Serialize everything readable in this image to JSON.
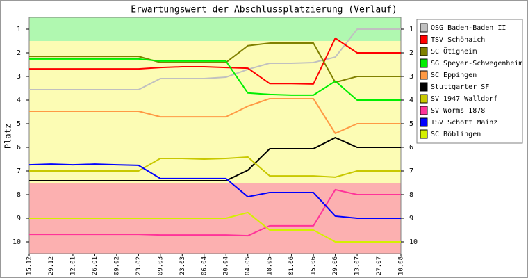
{
  "chart_data": {
    "type": "line",
    "title": "Erwartungswert der Abschlussplatzierung (Verlauf)",
    "y_label": "Platz",
    "categories": [
      "15.12",
      "29.12",
      "12.01",
      "26.01",
      "09.02",
      "23.02",
      "09.03",
      "23.03",
      "06.04",
      "20.04",
      "04.05",
      "18.05",
      "01.06",
      "15.06",
      "29.06",
      "13.07",
      "27.07",
      "10.08"
    ],
    "ylim": [
      0.5,
      10.5
    ],
    "y_inverted": true,
    "yticks": [
      1,
      2,
      3,
      4,
      5,
      6,
      7,
      8,
      9,
      10
    ],
    "right_axis": true,
    "legend": "right",
    "bands": [
      {
        "from": 0.5,
        "to": 1.5,
        "color": "#b0f8b0"
      },
      {
        "from": 1.5,
        "to": 7.5,
        "color": "#fcfcb4"
      },
      {
        "from": 7.5,
        "to": 10.5,
        "color": "#fcb0b0"
      }
    ],
    "series": [
      {
        "name": "OSG Baden-Baden II",
        "color": "#c0c0c0",
        "values": [
          3.56,
          3.56,
          3.56,
          3.56,
          3.56,
          3.56,
          3.09,
          3.09,
          3.09,
          3.03,
          2.7,
          2.44,
          2.44,
          2.41,
          2.18,
          1,
          1,
          1
        ]
      },
      {
        "name": "TSV Schönaich",
        "color": "#ff0000",
        "values": [
          2.68,
          2.68,
          2.68,
          2.68,
          2.68,
          2.68,
          2.62,
          2.59,
          2.59,
          2.62,
          2.65,
          3.3,
          3.3,
          3.32,
          1.38,
          2,
          2,
          2
        ]
      },
      {
        "name": "SC Ötigheim",
        "color": "#808000",
        "values": [
          2.15,
          2.15,
          2.15,
          2.15,
          2.15,
          2.15,
          2.41,
          2.41,
          2.41,
          2.41,
          1.7,
          1.59,
          1.59,
          1.59,
          3.25,
          3,
          3,
          3
        ]
      },
      {
        "name": "SG Speyer-Schwegenheim",
        "color": "#00ee00",
        "values": [
          2.26,
          2.26,
          2.26,
          2.26,
          2.26,
          2.26,
          2.35,
          2.35,
          2.35,
          2.35,
          3.7,
          3.76,
          3.79,
          3.79,
          3.2,
          4,
          4,
          4
        ]
      },
      {
        "name": "SC Eppingen",
        "color": "#ff9944",
        "values": [
          4.47,
          4.47,
          4.47,
          4.47,
          4.47,
          4.47,
          4.71,
          4.71,
          4.71,
          4.71,
          4.26,
          3.94,
          3.94,
          3.94,
          5.41,
          5,
          5,
          5
        ]
      },
      {
        "name": "Stuttgarter SF",
        "color": "#000000",
        "values": [
          7.41,
          7.41,
          7.41,
          7.41,
          7.41,
          7.41,
          7.41,
          7.41,
          7.41,
          7.41,
          6.97,
          6.06,
          6.06,
          6.06,
          5.59,
          6,
          6,
          6
        ]
      },
      {
        "name": "SV 1947 Walldorf",
        "color": "#c8c800",
        "values": [
          7,
          7,
          7,
          7,
          7,
          7,
          6.47,
          6.47,
          6.5,
          6.47,
          6.41,
          7.21,
          7.21,
          7.21,
          7.26,
          7,
          7,
          7
        ]
      },
      {
        "name": "SV Worms 1878",
        "color": "#ff3399",
        "values": [
          9.68,
          9.68,
          9.68,
          9.68,
          9.68,
          9.68,
          9.71,
          9.71,
          9.71,
          9.71,
          9.74,
          9.32,
          9.32,
          9.32,
          7.79,
          8,
          8,
          8
        ]
      },
      {
        "name": "TSV Schott Mainz",
        "color": "#0000ff",
        "values": [
          6.74,
          6.71,
          6.74,
          6.71,
          6.74,
          6.76,
          7.32,
          7.32,
          7.32,
          7.32,
          8.09,
          7.91,
          7.91,
          7.91,
          8.91,
          9,
          9,
          9
        ]
      },
      {
        "name": "SC Böblingen",
        "color": "#d4f000",
        "values": [
          9,
          9,
          9,
          9,
          9,
          9,
          9,
          9,
          9,
          9,
          8.76,
          9.5,
          9.5,
          9.5,
          10,
          10,
          10,
          10
        ]
      }
    ]
  }
}
